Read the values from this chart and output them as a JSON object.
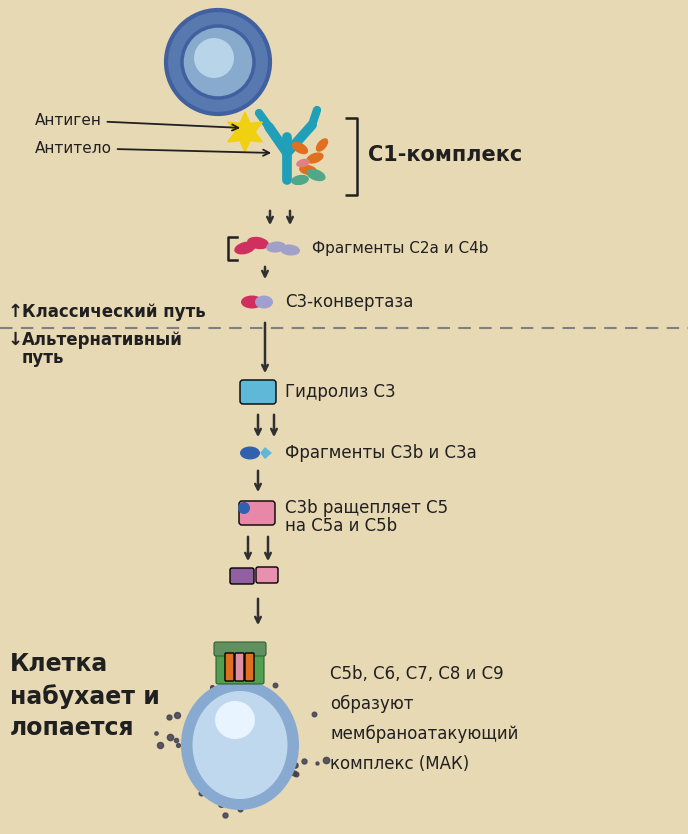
{
  "background_color": "#e8d9b5",
  "fig_width": 6.88,
  "fig_height": 8.34,
  "dpi": 100,
  "labels": {
    "antigen": "Антиген",
    "antibody": "Антитело",
    "c1_complex": "С1-комплекс",
    "fragments_c2a_c4b": "Фрагменты С2а и С4b",
    "classical_path": "Классический путь",
    "c3_convertase": "С3-конвертаза",
    "alt_path_line1": "Альтернативный",
    "alt_path_line2": "путь",
    "hydrolysis": "Гидролиз С3",
    "fragments_c3b_c3a": "Фрагменты С3b и С3а",
    "c3b_cleaves_1": "С3b ращепляет С5",
    "c3b_cleaves_2": "на С5а и С5b",
    "cell_swells": "Клетка\nнабухает и\nлопается",
    "mac_forms_1": "С5b, С6, С7, С8 и С9",
    "mac_forms_2": "образуют",
    "mac_forms_3": "мембраноатакующий",
    "mac_forms_4": "комплекс (МАК)"
  },
  "colors": {
    "cell_outer": "#5878b0",
    "cell_ring": "#4060a0",
    "cell_inner": "#88aacc",
    "cell_center": "#b8d4e8",
    "yellow_star": "#f0d010",
    "teal": "#20a0b8",
    "orange": "#e07020",
    "pink_salmon": "#e08080",
    "green_teal": "#50a888",
    "pink_pill": "#d03060",
    "lavender_pill": "#a0a0c8",
    "bicolor_pink": "#d03060",
    "bicolor_blue": "#a0a0d0",
    "cyan_rounded": "#60b8d8",
    "dark_blue_oval": "#3060b0",
    "light_cyan_diamond": "#60b8d8",
    "pink_rounded": "#e888a8",
    "blue_small": "#3060b0",
    "purple_small": "#9060a0",
    "pink_small2": "#e890b0",
    "green_mac": "#50a050",
    "orange_mac": "#e07020",
    "pink_mac": "#e090a0",
    "cell2_outer": "#88aad0",
    "cell2_inner": "#c0d8ee",
    "cell2_bright": "#e8f4ff",
    "arrow_col": "#303030",
    "text_col": "#202020",
    "dashed_col": "#808080"
  }
}
